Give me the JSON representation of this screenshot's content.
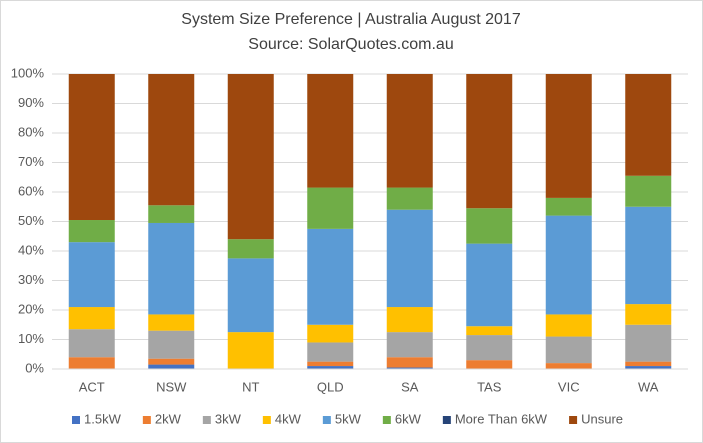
{
  "chart_data": {
    "type": "stacked-bar-100",
    "title": "System Size Preference | Australia August 2017",
    "subtitle": "Source: SolarQuotes.com.au",
    "categories": [
      "ACT",
      "NSW",
      "NT",
      "QLD",
      "SA",
      "TAS",
      "VIC",
      "WA"
    ],
    "series": [
      {
        "name": "1.5kW",
        "color": "#4472c4",
        "values": [
          0,
          1.5,
          0,
          1,
          0.5,
          0,
          0,
          1
        ]
      },
      {
        "name": "2kW",
        "color": "#ed7d31",
        "values": [
          4,
          2,
          0,
          1.5,
          3.5,
          3,
          2,
          1.5
        ]
      },
      {
        "name": "3kW",
        "color": "#a5a5a5",
        "values": [
          9.5,
          9.5,
          0,
          6.5,
          8.5,
          8.5,
          9,
          12.5
        ]
      },
      {
        "name": "4kW",
        "color": "#ffc000",
        "values": [
          7.5,
          5.5,
          12.5,
          6,
          8.5,
          3,
          7.5,
          7
        ]
      },
      {
        "name": "5kW",
        "color": "#5b9bd5",
        "values": [
          22,
          31,
          25,
          32.5,
          33,
          28,
          33.5,
          33
        ]
      },
      {
        "name": "6kW",
        "color": "#70ad47",
        "values": [
          7.5,
          6,
          6.5,
          14,
          7.5,
          12,
          6,
          10.5
        ]
      },
      {
        "name": "More Than 6kW",
        "color": "#264478",
        "values": [
          0,
          0,
          0,
          0,
          0,
          0,
          0,
          0
        ]
      },
      {
        "name": "Unsure",
        "color": "#9e480e",
        "values": [
          49.5,
          44.5,
          56,
          38.5,
          38.5,
          45.5,
          42,
          34.5
        ]
      }
    ],
    "ylim": [
      0,
      100
    ],
    "yticks": [
      {
        "value": 0,
        "label": "0%"
      },
      {
        "value": 10,
        "label": "10%"
      },
      {
        "value": 20,
        "label": "20%"
      },
      {
        "value": 30,
        "label": "30%"
      },
      {
        "value": 40,
        "label": "40%"
      },
      {
        "value": 50,
        "label": "50%"
      },
      {
        "value": 60,
        "label": "60%"
      },
      {
        "value": 70,
        "label": "70%"
      },
      {
        "value": 80,
        "label": "80%"
      },
      {
        "value": 90,
        "label": "90%"
      },
      {
        "value": 100,
        "label": "100%"
      }
    ],
    "grid": true,
    "legend": "bottom"
  }
}
